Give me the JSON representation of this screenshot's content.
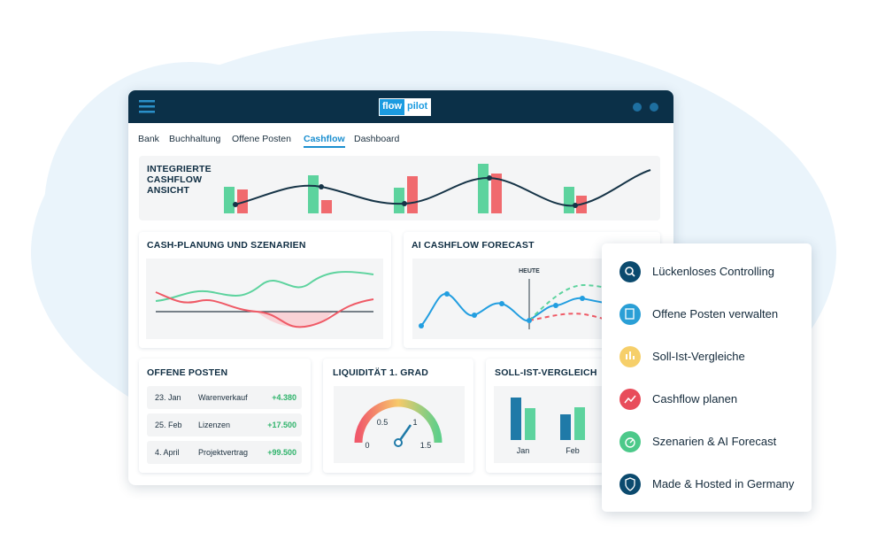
{
  "logo": [
    "flow",
    "pilot"
  ],
  "nav": [
    "Bank",
    "Buchhaltung",
    "Offene Posten",
    "Cashflow",
    "Dashboard"
  ],
  "overview": {
    "title": [
      "INTEGRIERTE",
      "CASHFLOW",
      "ANSICHT"
    ]
  },
  "cash_planning": {
    "title": "CASH-PLANUNG UND SZENARIEN"
  },
  "ai_forecast": {
    "title": "AI CASHFLOW FORECAST",
    "marker": "HEUTE"
  },
  "open_items": {
    "title": "OFFENE POSTEN",
    "rows": [
      [
        "23. Jan",
        "Warenverkauf",
        "+4.380"
      ],
      [
        "25. Feb",
        "Lizenzen",
        "+17.500"
      ],
      [
        "4. April",
        "Projektvertrag",
        "+99.500"
      ]
    ]
  },
  "liquidity": {
    "title": "LIQUIDITÄT 1. GRAD",
    "gauge_labels": [
      "0",
      "0.5",
      "1",
      "1.5"
    ]
  },
  "plan_actual": {
    "title": "SOLL-IST-VERGLEICH",
    "months": [
      "Jan",
      "Feb"
    ]
  },
  "features": [
    "Lückenloses Controlling",
    "Offene Posten verwalten",
    "Soll-Ist-Vergleiche",
    "Cashflow planen",
    "Szenarien & AI Forecast",
    "Made & Hosted in Germany"
  ]
}
